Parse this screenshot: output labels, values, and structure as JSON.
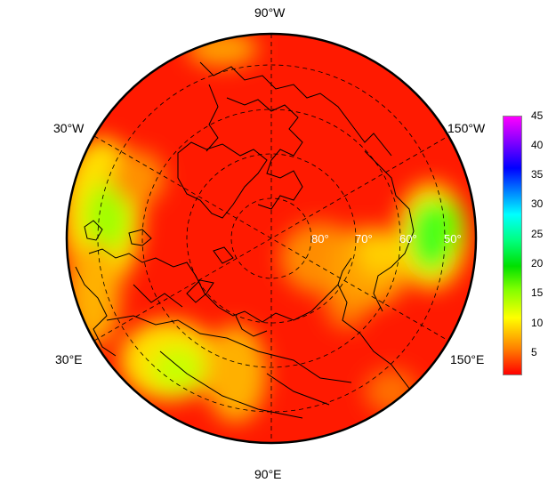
{
  "longitude_labels": {
    "top": "90°W",
    "bottom": "90°E",
    "upper_left": "30°W",
    "lower_left": "30°E",
    "upper_right": "150°W",
    "lower_right": "150°E"
  },
  "latitude_labels": [
    "80°",
    "70°",
    "60°",
    "50°"
  ],
  "colorbar": {
    "ticks": [
      "45",
      "40",
      "35",
      "30",
      "25",
      "20",
      "15",
      "10",
      "5"
    ],
    "min": 1,
    "max": 45,
    "colors": [
      "#ff0000",
      "#ff8000",
      "#ffff00",
      "#80ff00",
      "#00e000",
      "#00ff80",
      "#00ffff",
      "#0080ff",
      "#0000ff",
      "#8000ff",
      "#ff00ff"
    ]
  },
  "map": {
    "projection": "north-polar-stereographic",
    "background_color": "#ff1a00",
    "coastline_color": "#000000"
  }
}
